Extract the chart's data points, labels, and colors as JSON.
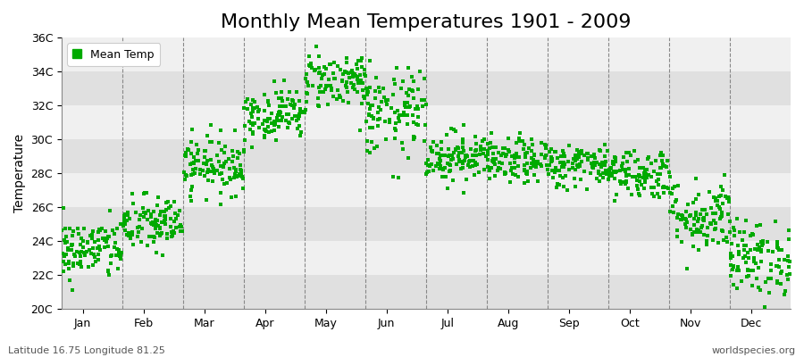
{
  "title": "Monthly Mean Temperatures 1901 - 2009",
  "ylabel": "Temperature",
  "subtitle_left": "Latitude 16.75 Longitude 81.25",
  "subtitle_right": "worldspecies.org",
  "legend_label": "Mean Temp",
  "years": 109,
  "month_names": [
    "Jan",
    "Feb",
    "Mar",
    "Apr",
    "May",
    "Jun",
    "Jul",
    "Aug",
    "Sep",
    "Oct",
    "Nov",
    "Dec"
  ],
  "monthly_means": [
    23.5,
    25.0,
    28.5,
    31.5,
    33.5,
    31.5,
    29.0,
    28.7,
    28.5,
    28.0,
    25.5,
    23.0
  ],
  "monthly_stds": [
    0.9,
    0.85,
    0.85,
    0.75,
    0.85,
    1.3,
    0.75,
    0.65,
    0.65,
    0.75,
    1.1,
    1.1
  ],
  "ylim": [
    20,
    36
  ],
  "yticks": [
    20,
    22,
    24,
    26,
    28,
    30,
    32,
    34,
    36
  ],
  "ytick_labels": [
    "20C",
    "22C",
    "24C",
    "26C",
    "28C",
    "30C",
    "32C",
    "34C",
    "36C"
  ],
  "marker_color": "#00AA00",
  "marker_size": 2.5,
  "bg_color_light": "#F0F0F0",
  "bg_color_dark": "#E0E0E0",
  "fig_bg_color": "#FFFFFF",
  "grid_color": "#888888",
  "title_fontsize": 16,
  "axis_label_fontsize": 10,
  "tick_fontsize": 9,
  "seed": 42
}
